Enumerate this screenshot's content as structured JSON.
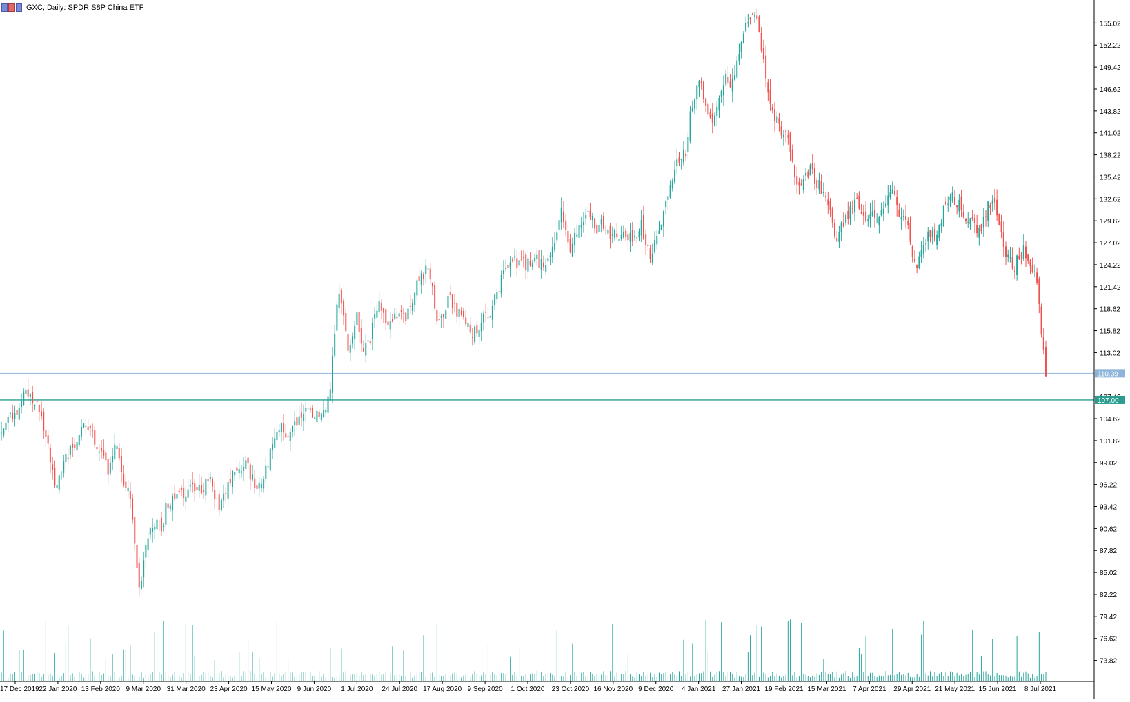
{
  "chart_title": {
    "symbol": "GXC, Daily:",
    "name": "SPDR S&P China ETF",
    "text": "GXC, Daily:  SPDR S8P China ETF"
  },
  "colors": {
    "bull": "#26a69a",
    "bear": "#ef5350",
    "volume": "#26a69a",
    "axis": "#000000",
    "hline": "#2a9d8f",
    "bid_line": "#8fb4d9",
    "price_tag_bid": "#8fb4d9",
    "price_tag_level": "#2a9d8f"
  },
  "chart_data": {
    "type": "candlestick",
    "title": "GXC, Daily:  SPDR S8P China ETF",
    "x_tick_labels": [
      "17 Dec 2019",
      "22 Jan 2020",
      "13 Feb 2020",
      "9 Mar 2020",
      "31 Mar 2020",
      "23 Apr 2020",
      "15 May 2020",
      "9 Jun 2020",
      "1 Jul 2020",
      "24 Jul 2020",
      "17 Aug 2020",
      "9 Sep 2020",
      "1 Oct 2020",
      "23 Oct 2020",
      "16 Nov 2020",
      "9 Dec 2020",
      "4 Jan 2021",
      "27 Jan 2021",
      "19 Feb 2021",
      "15 Mar 2021",
      "7 Apr 2021",
      "29 Apr 2021",
      "21 May 2021",
      "15 Jun 2021",
      "8 Jul 2021"
    ],
    "y_tick_labels": [
      "155.02",
      "152.22",
      "149.42",
      "146.62",
      "143.82",
      "141.02",
      "138.22",
      "135.42",
      "132.62",
      "129.82",
      "127.02",
      "124.22",
      "121.42",
      "118.62",
      "115.82",
      "113.02",
      "107.42",
      "104.62",
      "101.82",
      "99.02",
      "96.22",
      "93.42",
      "90.62",
      "87.82",
      "85.02",
      "82.22",
      "79.42",
      "76.62",
      "73.82"
    ],
    "ylim": [
      71.5,
      157.6
    ],
    "price_levels": [
      {
        "label": "110.39",
        "value": 110.39,
        "kind": "bid"
      },
      {
        "label": "107.00",
        "value": 107.0,
        "kind": "horizontal-line"
      }
    ],
    "anchors": [
      [
        0,
        102.8
      ],
      [
        3,
        104.3
      ],
      [
        7,
        105.5
      ],
      [
        10,
        107.9
      ],
      [
        13,
        107.6
      ],
      [
        16,
        106.0
      ],
      [
        20,
        103.0
      ],
      [
        24,
        96.0
      ],
      [
        28,
        99.5
      ],
      [
        32,
        101.0
      ],
      [
        36,
        103.8
      ],
      [
        40,
        103.5
      ],
      [
        44,
        100.5
      ],
      [
        48,
        98.0
      ],
      [
        52,
        101.5
      ],
      [
        55,
        96.5
      ],
      [
        58,
        95.0
      ],
      [
        60,
        88.0
      ],
      [
        62,
        82.5
      ],
      [
        64,
        86.0
      ],
      [
        66,
        89.5
      ],
      [
        68,
        91.0
      ],
      [
        70,
        92.0
      ],
      [
        72,
        89.5
      ],
      [
        74,
        93.5
      ],
      [
        78,
        94.5
      ],
      [
        82,
        95.0
      ],
      [
        86,
        96.0
      ],
      [
        90,
        95.5
      ],
      [
        94,
        97.0
      ],
      [
        98,
        93.0
      ],
      [
        102,
        96.5
      ],
      [
        106,
        98.0
      ],
      [
        110,
        99.0
      ],
      [
        114,
        96.0
      ],
      [
        118,
        97.0
      ],
      [
        122,
        101.0
      ],
      [
        126,
        103.5
      ],
      [
        130,
        102.5
      ],
      [
        134,
        104.5
      ],
      [
        138,
        105.5
      ],
      [
        142,
        105.0
      ],
      [
        146,
        106.0
      ],
      [
        148,
        108.5
      ],
      [
        150,
        116.0
      ],
      [
        152,
        121.0
      ],
      [
        154,
        118.0
      ],
      [
        156,
        114.0
      ],
      [
        158,
        115.5
      ],
      [
        160,
        118.0
      ],
      [
        162,
        114.0
      ],
      [
        164,
        113.5
      ],
      [
        166,
        115.0
      ],
      [
        168,
        117.5
      ],
      [
        170,
        119.5
      ],
      [
        172,
        118.0
      ],
      [
        174,
        116.5
      ],
      [
        176,
        117.0
      ],
      [
        178,
        118.0
      ],
      [
        180,
        119.0
      ],
      [
        182,
        117.5
      ],
      [
        184,
        119.0
      ],
      [
        186,
        120.5
      ],
      [
        188,
        122.5
      ],
      [
        190,
        123.0
      ],
      [
        192,
        124.0
      ],
      [
        194,
        121.0
      ],
      [
        196,
        117.0
      ],
      [
        198,
        117.5
      ],
      [
        200,
        119.0
      ],
      [
        202,
        120.5
      ],
      [
        204,
        118.5
      ],
      [
        206,
        118.0
      ],
      [
        208,
        117.0
      ],
      [
        210,
        116.5
      ],
      [
        212,
        115.5
      ],
      [
        214,
        116.0
      ],
      [
        216,
        117.0
      ],
      [
        218,
        117.5
      ],
      [
        220,
        118.5
      ],
      [
        222,
        120.0
      ],
      [
        224,
        121.5
      ],
      [
        226,
        123.5
      ],
      [
        228,
        124.5
      ],
      [
        230,
        125.5
      ],
      [
        232,
        124.5
      ],
      [
        234,
        125.0
      ],
      [
        236,
        124.0
      ],
      [
        238,
        124.5
      ],
      [
        240,
        125.5
      ],
      [
        242,
        124.0
      ],
      [
        244,
        124.5
      ],
      [
        246,
        125.0
      ],
      [
        248,
        126.0
      ],
      [
        250,
        129.0
      ],
      [
        252,
        131.0
      ],
      [
        254,
        129.0
      ],
      [
        256,
        126.5
      ],
      [
        258,
        128.0
      ],
      [
        260,
        129.0
      ],
      [
        262,
        130.0
      ],
      [
        264,
        131.5
      ],
      [
        266,
        130.0
      ],
      [
        268,
        129.0
      ],
      [
        270,
        129.5
      ],
      [
        272,
        129.0
      ],
      [
        274,
        128.0
      ],
      [
        276,
        128.5
      ],
      [
        278,
        127.5
      ],
      [
        280,
        129.0
      ],
      [
        282,
        128.0
      ],
      [
        284,
        127.5
      ],
      [
        286,
        128.5
      ],
      [
        288,
        129.5
      ],
      [
        290,
        127.0
      ],
      [
        292,
        125.0
      ],
      [
        294,
        127.0
      ],
      [
        296,
        129.0
      ],
      [
        298,
        131.0
      ],
      [
        300,
        133.0
      ],
      [
        302,
        135.0
      ],
      [
        304,
        137.0
      ],
      [
        306,
        138.5
      ],
      [
        308,
        138.0
      ],
      [
        310,
        143.0
      ],
      [
        312,
        146.0
      ],
      [
        314,
        148.0
      ],
      [
        316,
        145.5
      ],
      [
        318,
        143.0
      ],
      [
        320,
        141.5
      ],
      [
        322,
        144.0
      ],
      [
        324,
        146.0
      ],
      [
        326,
        148.0
      ],
      [
        328,
        147.5
      ],
      [
        330,
        149.0
      ],
      [
        332,
        151.0
      ],
      [
        334,
        154.0
      ],
      [
        336,
        155.5
      ],
      [
        338,
        156.0
      ],
      [
        340,
        155.0
      ],
      [
        342,
        152.0
      ],
      [
        344,
        148.0
      ],
      [
        346,
        145.0
      ],
      [
        348,
        143.0
      ],
      [
        350,
        142.0
      ],
      [
        352,
        141.0
      ],
      [
        354,
        140.0
      ],
      [
        356,
        137.0
      ],
      [
        358,
        134.0
      ],
      [
        360,
        133.5
      ],
      [
        362,
        135.5
      ],
      [
        364,
        136.5
      ],
      [
        366,
        135.0
      ],
      [
        368,
        134.5
      ],
      [
        370,
        133.5
      ],
      [
        372,
        132.0
      ],
      [
        374,
        129.5
      ],
      [
        376,
        127.5
      ],
      [
        378,
        129.0
      ],
      [
        380,
        130.0
      ],
      [
        382,
        131.5
      ],
      [
        384,
        132.5
      ],
      [
        386,
        131.5
      ],
      [
        388,
        130.0
      ],
      [
        390,
        130.5
      ],
      [
        392,
        131.0
      ],
      [
        394,
        130.5
      ],
      [
        396,
        131.0
      ],
      [
        398,
        132.0
      ],
      [
        400,
        133.0
      ],
      [
        402,
        133.5
      ],
      [
        404,
        131.0
      ],
      [
        406,
        130.0
      ],
      [
        408,
        128.5
      ],
      [
        410,
        126.0
      ],
      [
        412,
        124.0
      ],
      [
        414,
        125.5
      ],
      [
        416,
        127.5
      ],
      [
        418,
        128.5
      ],
      [
        420,
        128.0
      ],
      [
        422,
        129.0
      ],
      [
        424,
        131.0
      ],
      [
        426,
        132.5
      ],
      [
        428,
        133.0
      ],
      [
        430,
        132.0
      ],
      [
        432,
        131.5
      ],
      [
        434,
        130.5
      ],
      [
        436,
        130.0
      ],
      [
        438,
        129.0
      ],
      [
        440,
        128.5
      ],
      [
        442,
        130.0
      ],
      [
        444,
        131.5
      ],
      [
        446,
        133.0
      ],
      [
        448,
        130.5
      ],
      [
        450,
        128.5
      ],
      [
        452,
        126.0
      ],
      [
        454,
        124.5
      ],
      [
        456,
        124.0
      ],
      [
        458,
        125.5
      ],
      [
        460,
        126.5
      ],
      [
        462,
        125.0
      ],
      [
        464,
        124.0
      ],
      [
        466,
        122.0
      ],
      [
        468,
        116.0
      ],
      [
        470,
        110.4
      ]
    ],
    "grid": false,
    "legend": "none"
  }
}
